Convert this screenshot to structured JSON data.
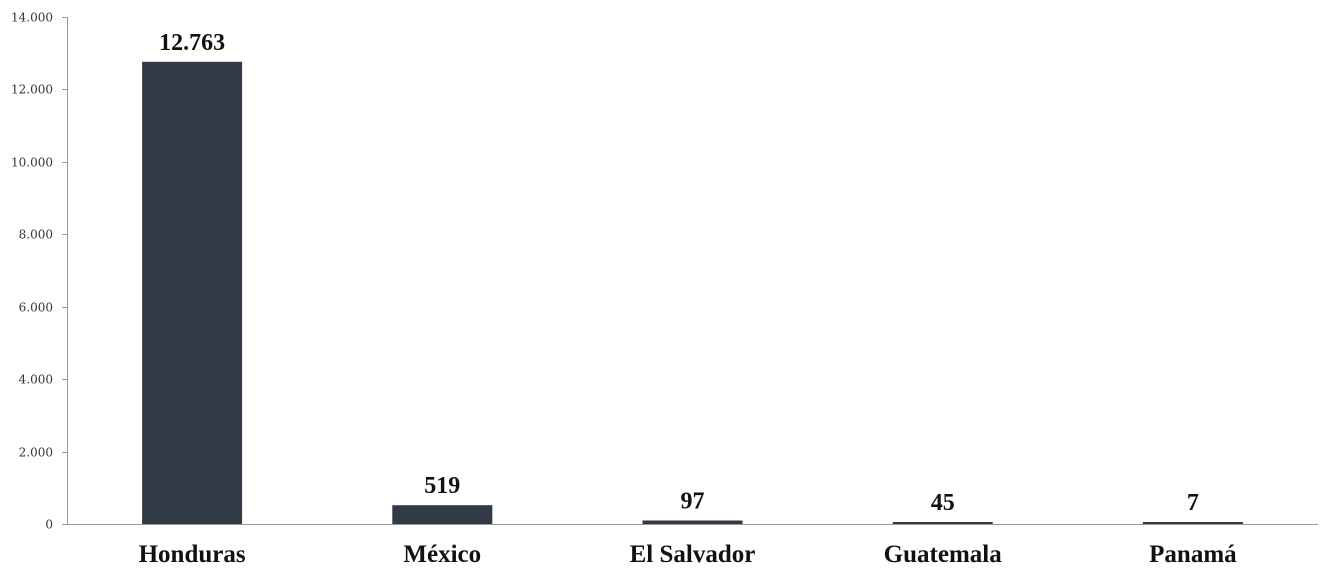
{
  "chart_data": {
    "type": "bar",
    "title": "",
    "xlabel": "",
    "ylabel": "",
    "categories": [
      "Honduras",
      "México",
      "El Salvador",
      "Guatemala",
      "Panamá"
    ],
    "values": [
      12763,
      519,
      97,
      45,
      7
    ],
    "value_labels": [
      "12.763",
      "519",
      "97",
      "45",
      "7"
    ],
    "ylim": [
      0,
      14000
    ],
    "y_ticks": [
      0,
      2000,
      4000,
      6000,
      8000,
      10000,
      12000,
      14000
    ],
    "y_tick_labels": [
      "0",
      "2.000",
      "4.000",
      "6.000",
      "8.000",
      "10.000",
      "12.000",
      "14.000"
    ],
    "grid": false,
    "legend": "none",
    "bar_color": "#323a45"
  }
}
